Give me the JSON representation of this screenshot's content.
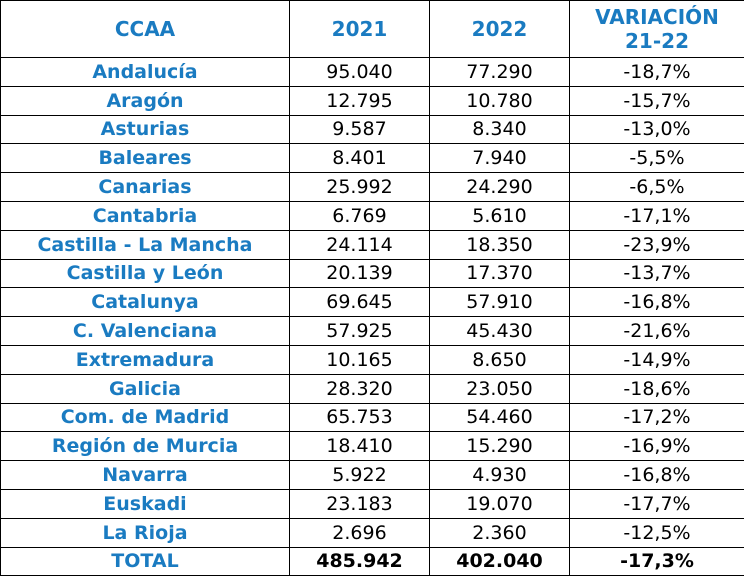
{
  "table": {
    "headers": [
      "CCAA",
      "2021",
      "2022",
      "VARIACIÓN 21-22"
    ],
    "rows": [
      [
        "Andalucía",
        "95.040",
        "77.290",
        "-18,7%"
      ],
      [
        "Aragón",
        "12.795",
        "10.780",
        "-15,7%"
      ],
      [
        "Asturias",
        "9.587",
        "8.340",
        "-13,0%"
      ],
      [
        "Baleares",
        "8.401",
        "7.940",
        "-5,5%"
      ],
      [
        "Canarias",
        "25.992",
        "24.290",
        "-6,5%"
      ],
      [
        "Cantabria",
        "6.769",
        "5.610",
        "-17,1%"
      ],
      [
        "Castilla - La Mancha",
        "24.114",
        "18.350",
        "-23,9%"
      ],
      [
        "Castilla y León",
        "20.139",
        "17.370",
        "-13,7%"
      ],
      [
        "Catalunya",
        "69.645",
        "57.910",
        "-16,8%"
      ],
      [
        "C. Valenciana",
        "57.925",
        "45.430",
        "-21,6%"
      ],
      [
        "Extremadura",
        "10.165",
        "8.650",
        "-14,9%"
      ],
      [
        "Galicia",
        "28.320",
        "23.050",
        "-18,6%"
      ],
      [
        "Com. de Madrid",
        "65.753",
        "54.460",
        "-17,2%"
      ],
      [
        "Región de Murcia",
        "18.410",
        "15.290",
        "-16,9%"
      ],
      [
        "Navarra",
        "5.922",
        "4.930",
        "-16,8%"
      ],
      [
        "Euskadi",
        "23.183",
        "19.070",
        "-17,7%"
      ],
      [
        "La Rioja",
        "2.696",
        "2.360",
        "-12,5%"
      ]
    ],
    "total": [
      "TOTAL",
      "485.942",
      "402.040",
      "-17,3%"
    ]
  },
  "colors": {
    "header_text": "#1a7bc1",
    "region_text": "#1a7bc1",
    "value_text": "#000000",
    "border": "#000000"
  }
}
